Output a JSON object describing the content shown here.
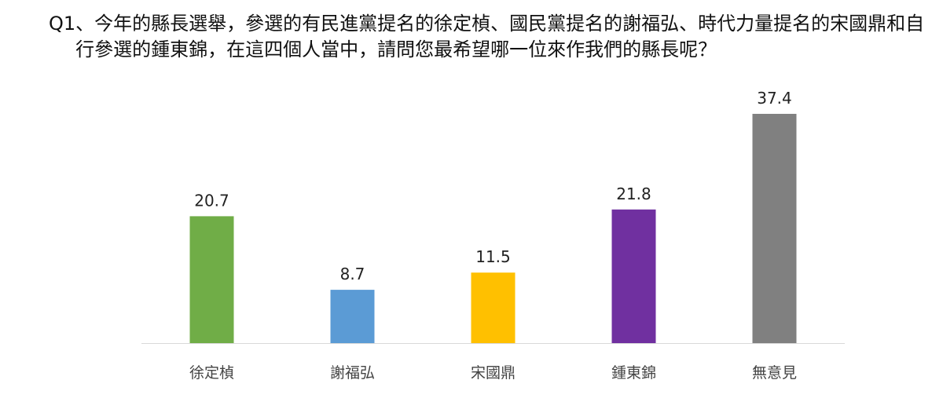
{
  "question": {
    "label": "Q1",
    "text": "、今年的縣長選舉，參選的有民進黨提名的徐定楨、國民黨提名的謝福弘、時代力量提名的宋國鼎和自行參選的鍾東錦，在這四個人當中，請問您最希望哪一位來作我們的縣長呢？"
  },
  "chart_data": {
    "type": "bar",
    "categories": [
      "徐定楨",
      "謝福弘",
      "宋國鼎",
      "鍾東錦",
      "無意見"
    ],
    "values": [
      20.7,
      8.7,
      11.5,
      21.8,
      37.4
    ],
    "colors": [
      "#70AD47",
      "#5B9BD5",
      "#FFC000",
      "#7030A0",
      "#808080"
    ],
    "ylim": [
      0,
      37.4
    ],
    "grid": false,
    "legend": "none"
  }
}
